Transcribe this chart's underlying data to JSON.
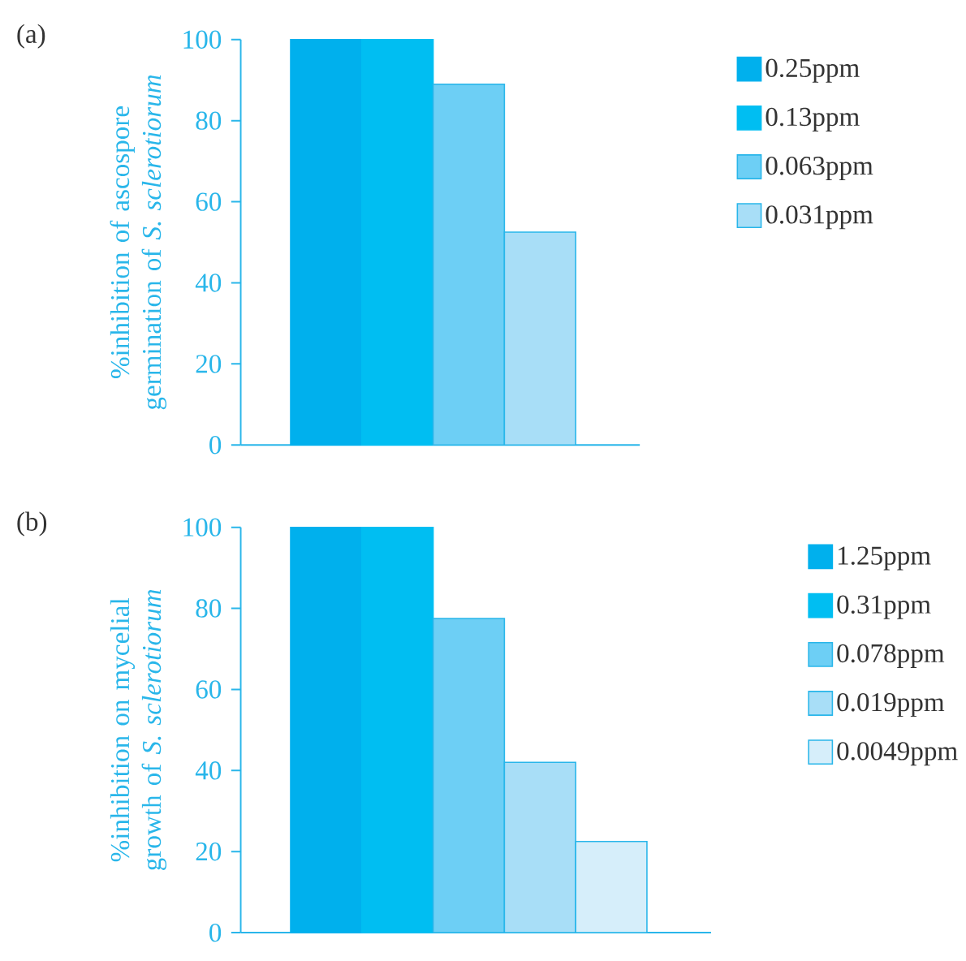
{
  "chart_data": [
    {
      "type": "bar",
      "title": "(a)",
      "ylabel": "%inhibition of ascospore germination of *S. sclerotiorum*",
      "categories": [
        null
      ],
      "ylim": [
        0,
        100
      ],
      "yticks": [
        0,
        20,
        40,
        60,
        80,
        100
      ],
      "legend": "right",
      "series": [
        {
          "name": "0.25ppm",
          "color": "#00b0ed",
          "values": [
            100
          ]
        },
        {
          "name": "0.13ppm",
          "color": "#00bef2",
          "values": [
            100
          ]
        },
        {
          "name": "0.063ppm",
          "color": "#6dcff5",
          "values": [
            89
          ]
        },
        {
          "name": "0.031ppm",
          "color": "#a8def7",
          "values": [
            52.5
          ]
        }
      ]
    },
    {
      "type": "bar",
      "title": "(b)",
      "ylabel": "%inhibition on mycelial growth of *S. sclerotiorum*",
      "categories": [
        null
      ],
      "ylim": [
        0,
        100
      ],
      "yticks": [
        0,
        20,
        40,
        60,
        80,
        100
      ],
      "legend": "right",
      "series": [
        {
          "name": "1.25ppm",
          "color": "#00b0ed",
          "values": [
            100
          ]
        },
        {
          "name": "0.31ppm",
          "color": "#00bef2",
          "values": [
            100
          ]
        },
        {
          "name": "0.078ppm",
          "color": "#6dcff5",
          "values": [
            77.5
          ]
        },
        {
          "name": "0.019ppm",
          "color": "#a8def7",
          "values": [
            42
          ]
        },
        {
          "name": "0.0049ppm",
          "color": "#d6eefa",
          "values": [
            22.5
          ]
        }
      ]
    }
  ]
}
